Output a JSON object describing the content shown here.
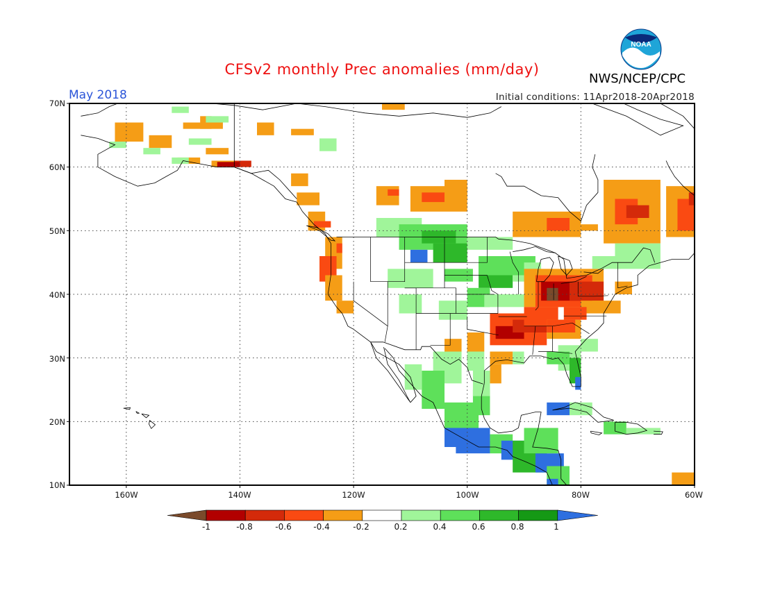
{
  "header": {
    "title": "CFSv2 monthly Prec anomalies (mm/day)",
    "month": "May 2018",
    "initial_conditions": "Initial conditions: 11Apr2018-20Apr2018",
    "agency": "NWS/NCEP/CPC",
    "logo_text": "NOAA"
  },
  "axes": {
    "lat_labels": [
      "70N",
      "60N",
      "50N",
      "40N",
      "30N",
      "20N",
      "10N"
    ],
    "lon_labels": [
      "160W",
      "140W",
      "120W",
      "100W",
      "80W",
      "60W"
    ]
  },
  "colorbar": {
    "labels": [
      "-1",
      "-0.8",
      "-0.6",
      "-0.4",
      "-0.2",
      "0.2",
      "0.4",
      "0.6",
      "0.8",
      "1"
    ],
    "colors": [
      "#7a4a2b",
      "#b20000",
      "#d42a0a",
      "#fa4a12",
      "#f59d16",
      "#ffffff",
      "#a0f59a",
      "#5ee05a",
      "#2eb82a",
      "#159915",
      "#2e6fe0"
    ]
  },
  "map_info": {
    "lon_range": [
      -170,
      -60
    ],
    "lat_range": [
      10,
      70
    ],
    "grid": "dotted",
    "lakes_anomaly_scale": "mm/day"
  }
}
